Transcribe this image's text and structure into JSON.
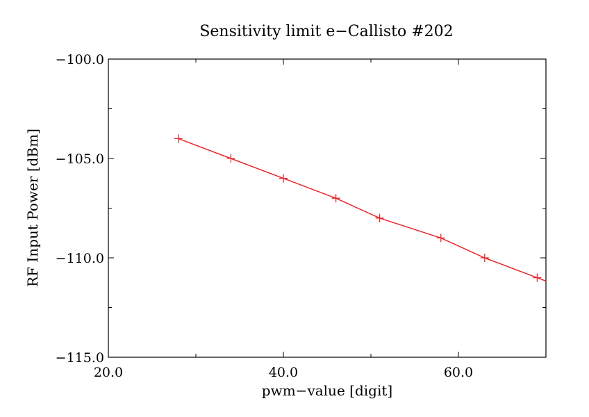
{
  "chart_data": {
    "type": "line",
    "title": "Sensitivity limit e−Callisto #202",
    "xlabel": "pwm−value [digit]",
    "ylabel": "RF Input Power [dBm]",
    "xlim": [
      20,
      70
    ],
    "ylim": [
      -115,
      -100
    ],
    "x_ticks": [
      20,
      40,
      60
    ],
    "x_tick_labels": [
      "20.0",
      "40.0",
      "60.0"
    ],
    "x_minor_step": 10,
    "y_ticks": [
      -100,
      -105,
      -110,
      -115
    ],
    "y_tick_labels": [
      "−100.0",
      "−105.0",
      "−110.0",
      "−115.0"
    ],
    "y_minor_step": 2.5,
    "grid": false,
    "series": [
      {
        "color": "#e8262a",
        "marker": "plus",
        "x": [
          28,
          34,
          40,
          46,
          51,
          58,
          63,
          69
        ],
        "y": [
          -104,
          -105,
          -106,
          -107,
          -108,
          -109,
          -110,
          -111
        ]
      }
    ],
    "line_extends_to_xmax": true
  }
}
